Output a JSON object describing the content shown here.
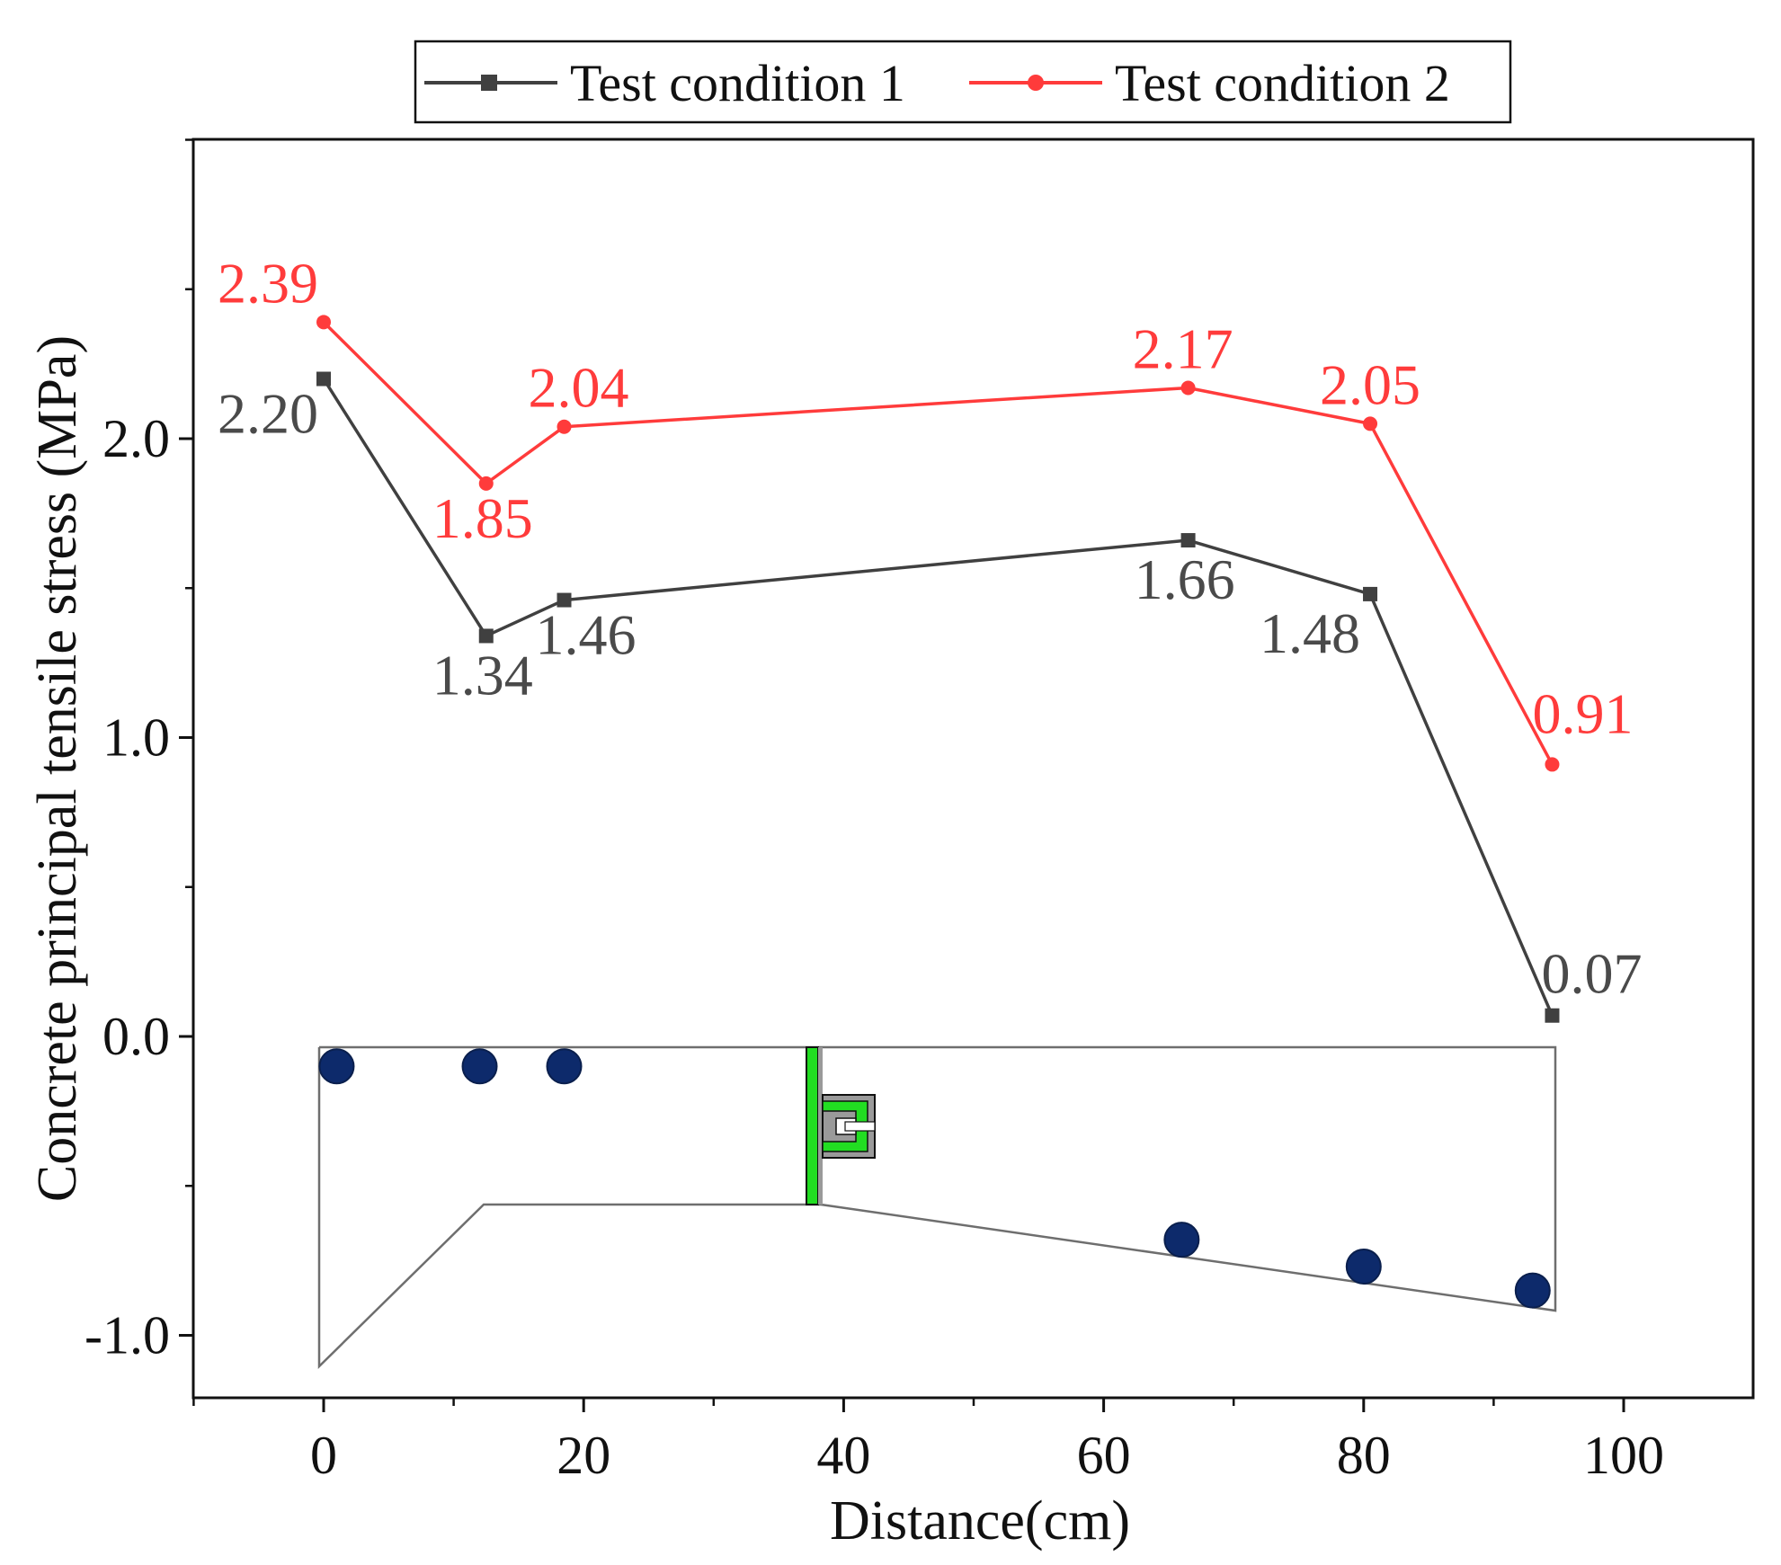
{
  "chart_data": {
    "type": "line",
    "title": "",
    "xlabel": "Distance(cm)",
    "ylabel": "Concrete principal tensile stress (MPa)",
    "xlim": [
      -10,
      110
    ],
    "ylim": [
      -1.2,
      3.0
    ],
    "xticks": [
      0,
      20,
      40,
      60,
      80,
      100
    ],
    "yticks": [
      -1.0,
      0.0,
      1.0,
      2.0
    ],
    "xtick_labels": [
      "0",
      "20",
      "40",
      "60",
      "80",
      "100"
    ],
    "ytick_labels": [
      "-1.0",
      "0.0",
      "1.0",
      "2.0"
    ],
    "legend_position": "top-center",
    "series": [
      {
        "name": "Test condition 1",
        "color": "#404040",
        "marker": "square",
        "x": [
          0,
          12.5,
          18.5,
          66.5,
          80.5,
          94.5
        ],
        "values": [
          2.2,
          1.34,
          1.46,
          1.66,
          1.48,
          0.07
        ],
        "labels": [
          "2.20",
          "1.34",
          "1.46",
          "1.66",
          "1.48",
          "0.07"
        ]
      },
      {
        "name": "Test condition 2",
        "color": "#ff3b3b",
        "marker": "circle",
        "x": [
          0,
          12.5,
          18.5,
          66.5,
          80.5,
          94.5
        ],
        "values": [
          2.39,
          1.85,
          2.04,
          2.17,
          2.05,
          0.91
        ],
        "labels": [
          "2.39",
          "1.85",
          "2.04",
          "2.17",
          "2.05",
          "0.91"
        ]
      }
    ],
    "inset": {
      "description_free": true,
      "sensor_points": [
        {
          "x": 1,
          "y": -0.1
        },
        {
          "x": 12,
          "y": -0.1
        },
        {
          "x": 18.5,
          "y": -0.1
        },
        {
          "x": 66,
          "y": -0.68
        },
        {
          "x": 80,
          "y": -0.77
        },
        {
          "x": 93,
          "y": -0.85
        }
      ],
      "sensor_color": "#0d2a6b",
      "section_color": "#6e6e6e",
      "connector_color": "#22dd22"
    }
  }
}
